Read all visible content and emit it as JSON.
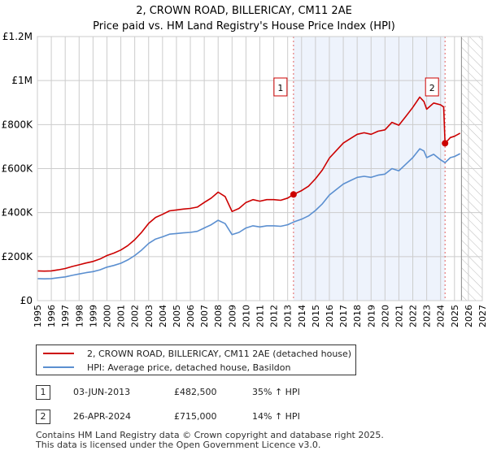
{
  "chart_data": {
    "type": "line",
    "title": "2, CROWN ROAD, BILLERICAY, CM11 2AE",
    "subtitle": "Price paid vs. HM Land Registry's House Price Index (HPI)",
    "xlim": [
      1995,
      2027
    ],
    "ylim": [
      0,
      1200000
    ],
    "x_ticks": [
      "1995",
      "1996",
      "1997",
      "1998",
      "1999",
      "2000",
      "2001",
      "2002",
      "2003",
      "2004",
      "2005",
      "2006",
      "2007",
      "2008",
      "2009",
      "2010",
      "2011",
      "2012",
      "2013",
      "2014",
      "2015",
      "2016",
      "2017",
      "2018",
      "2019",
      "2020",
      "2021",
      "2022",
      "2023",
      "2024",
      "2025",
      "2026",
      "2027"
    ],
    "y_ticks": [
      {
        "v": 0,
        "label": "£0"
      },
      {
        "v": 200000,
        "label": "£200K"
      },
      {
        "v": 400000,
        "label": "£400K"
      },
      {
        "v": 600000,
        "label": "£600K"
      },
      {
        "v": 800000,
        "label": "£800K"
      },
      {
        "v": 1000000,
        "label": "£1M"
      },
      {
        "v": 1200000,
        "label": "£1.2M"
      }
    ],
    "grid": true,
    "shaded_range": [
      2013.42,
      2024.32
    ],
    "forecast_hatch_from": 2025.5,
    "series": [
      {
        "name": "2, CROWN ROAD, BILLERICAY, CM11 2AE (detached house)",
        "color": "#cc0000",
        "x": [
          1995,
          1995.5,
          1996,
          1996.5,
          1997,
          1997.5,
          1998,
          1998.5,
          1999,
          1999.5,
          2000,
          2000.5,
          2001,
          2001.5,
          2002,
          2002.5,
          2003,
          2003.5,
          2004,
          2004.5,
          2005,
          2005.5,
          2006,
          2006.5,
          2007,
          2007.5,
          2008,
          2008.5,
          2009,
          2009.5,
          2010,
          2010.5,
          2011,
          2011.5,
          2012,
          2012.5,
          2013,
          2013.42,
          2014,
          2014.5,
          2015,
          2015.5,
          2016,
          2016.5,
          2017,
          2017.5,
          2018,
          2018.5,
          2019,
          2019.5,
          2020,
          2020.5,
          2021,
          2021.5,
          2022,
          2022.5,
          2022.8,
          2023,
          2023.5,
          2024,
          2024.22,
          2024.32,
          2024.7,
          2025,
          2025.4
        ],
        "y": [
          135000,
          134000,
          135000,
          140000,
          146000,
          155000,
          163000,
          171000,
          178000,
          189000,
          205000,
          216000,
          230000,
          250000,
          277000,
          311000,
          351000,
          378000,
          392000,
          408000,
          412000,
          416000,
          419000,
          425000,
          446000,
          466000,
          493000,
          473000,
          405000,
          419000,
          446000,
          459000,
          452000,
          459000,
          459000,
          456000,
          466000,
          482500,
          500000,
          520000,
          554000,
          594000,
          648000,
          682000,
          716000,
          736000,
          756000,
          763000,
          756000,
          770000,
          776000,
          810000,
          797000,
          837000,
          878000,
          925000,
          905000,
          870000,
          898000,
          890000,
          880000,
          715000,
          741000,
          747000,
          761000
        ]
      },
      {
        "name": "HPI: Average price, detached house, Basildon",
        "color": "#5b8fd0",
        "x": [
          1995,
          1995.5,
          1996,
          1996.5,
          1997,
          1997.5,
          1998,
          1998.5,
          1999,
          1999.5,
          2000,
          2000.5,
          2001,
          2001.5,
          2002,
          2002.5,
          2003,
          2003.5,
          2004,
          2004.5,
          2005,
          2005.5,
          2006,
          2006.5,
          2007,
          2007.5,
          2008,
          2008.5,
          2009,
          2009.5,
          2010,
          2010.5,
          2011,
          2011.5,
          2012,
          2012.5,
          2013,
          2013.42,
          2014,
          2014.5,
          2015,
          2015.5,
          2016,
          2016.5,
          2017,
          2017.5,
          2018,
          2018.5,
          2019,
          2019.5,
          2020,
          2020.5,
          2021,
          2021.5,
          2022,
          2022.5,
          2022.8,
          2023,
          2023.5,
          2024,
          2024.32,
          2024.7,
          2025,
          2025.4
        ],
        "y": [
          100000,
          99000,
          100000,
          104000,
          108000,
          115000,
          121000,
          127000,
          132000,
          140000,
          152000,
          160000,
          170000,
          185000,
          205000,
          230000,
          260000,
          280000,
          290000,
          302000,
          305000,
          308000,
          310000,
          315000,
          330000,
          345000,
          365000,
          350000,
          300000,
          310000,
          330000,
          340000,
          335000,
          340000,
          340000,
          338000,
          345000,
          357000,
          370000,
          385000,
          410000,
          440000,
          480000,
          505000,
          530000,
          545000,
          560000,
          565000,
          560000,
          570000,
          575000,
          600000,
          590000,
          620000,
          650000,
          690000,
          680000,
          650000,
          665000,
          640000,
          627000,
          650000,
          655000,
          668000
        ]
      }
    ],
    "sales": [
      {
        "id": "1",
        "x": 2013.42,
        "date": "03-JUN-2013",
        "price": "£482,500",
        "value": 482500,
        "hpi": "35% ↑ HPI"
      },
      {
        "id": "2",
        "x": 2024.32,
        "date": "26-APR-2024",
        "price": "£715,000",
        "value": 715000,
        "hpi": "14% ↑ HPI"
      }
    ]
  },
  "legend": {
    "red": "2, CROWN ROAD, BILLERICAY, CM11 2AE (detached house)",
    "blue": "HPI: Average price, detached house, Basildon"
  },
  "footer": {
    "line1": "Contains HM Land Registry data © Crown copyright and database right 2025.",
    "line2": "This data is licensed under the Open Government Licence v3.0."
  }
}
